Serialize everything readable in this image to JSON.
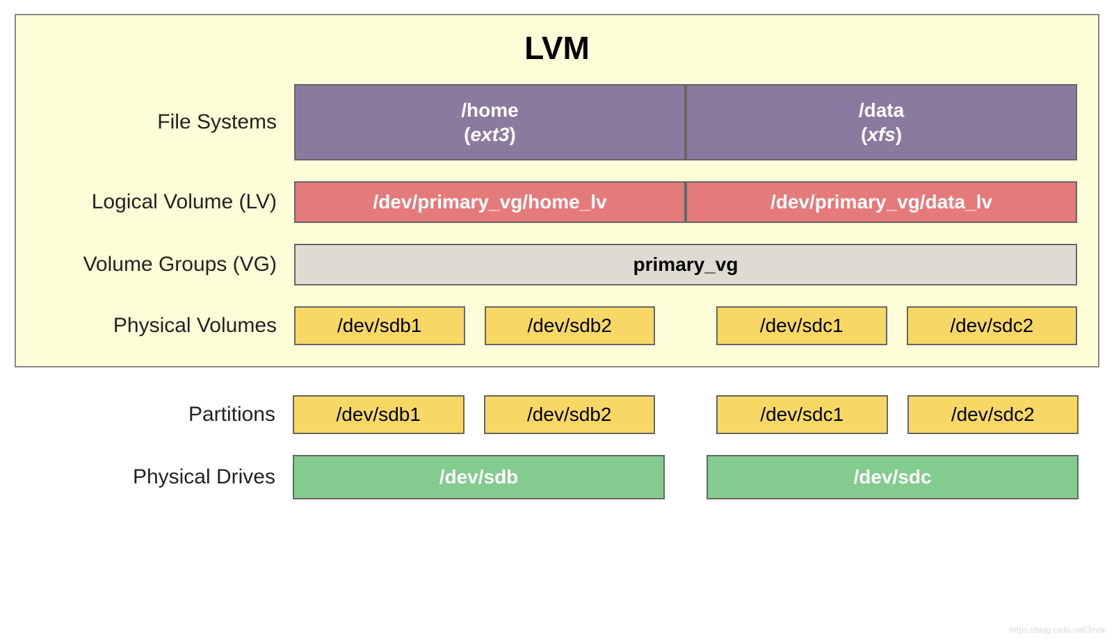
{
  "title": "LVM",
  "colors": {
    "lvm_bg": "#fdfdd8",
    "fs_bg": "#8b7a9f",
    "lv_bg": "#e57a7a",
    "vg_bg": "#dedcd2",
    "pv_bg": "#f7d864",
    "drive_bg": "#84cb8f",
    "border": "#666666",
    "text_light": "#ffffff",
    "text_dark": "#000000"
  },
  "labels": {
    "file_systems": "File Systems",
    "logical_volume": "Logical Volume (LV)",
    "volume_groups": "Volume Groups (VG)",
    "physical_volumes": "Physical Volumes",
    "partitions": "Partitions",
    "physical_drives": "Physical Drives"
  },
  "file_systems": [
    {
      "mount": "/home",
      "type": "ext3"
    },
    {
      "mount": "/data",
      "type": "xfs"
    }
  ],
  "logical_volumes": [
    "/dev/primary_vg/home_lv",
    "/dev/primary_vg/data_lv"
  ],
  "volume_group": "primary_vg",
  "physical_volumes": {
    "group1": [
      "/dev/sdb1",
      "/dev/sdb2"
    ],
    "group2": [
      "/dev/sdc1",
      "/dev/sdc2"
    ]
  },
  "partitions": {
    "group1": [
      "/dev/sdb1",
      "/dev/sdb2"
    ],
    "group2": [
      "/dev/sdc1",
      "/dev/sdc2"
    ]
  },
  "drives": [
    "/dev/sdb",
    "/dev/sdc"
  ],
  "typography": {
    "title_fontsize": 46,
    "label_fontsize": 30,
    "box_fontsize": 28
  },
  "watermark": "https://blog.csdn.net/Jmilk"
}
